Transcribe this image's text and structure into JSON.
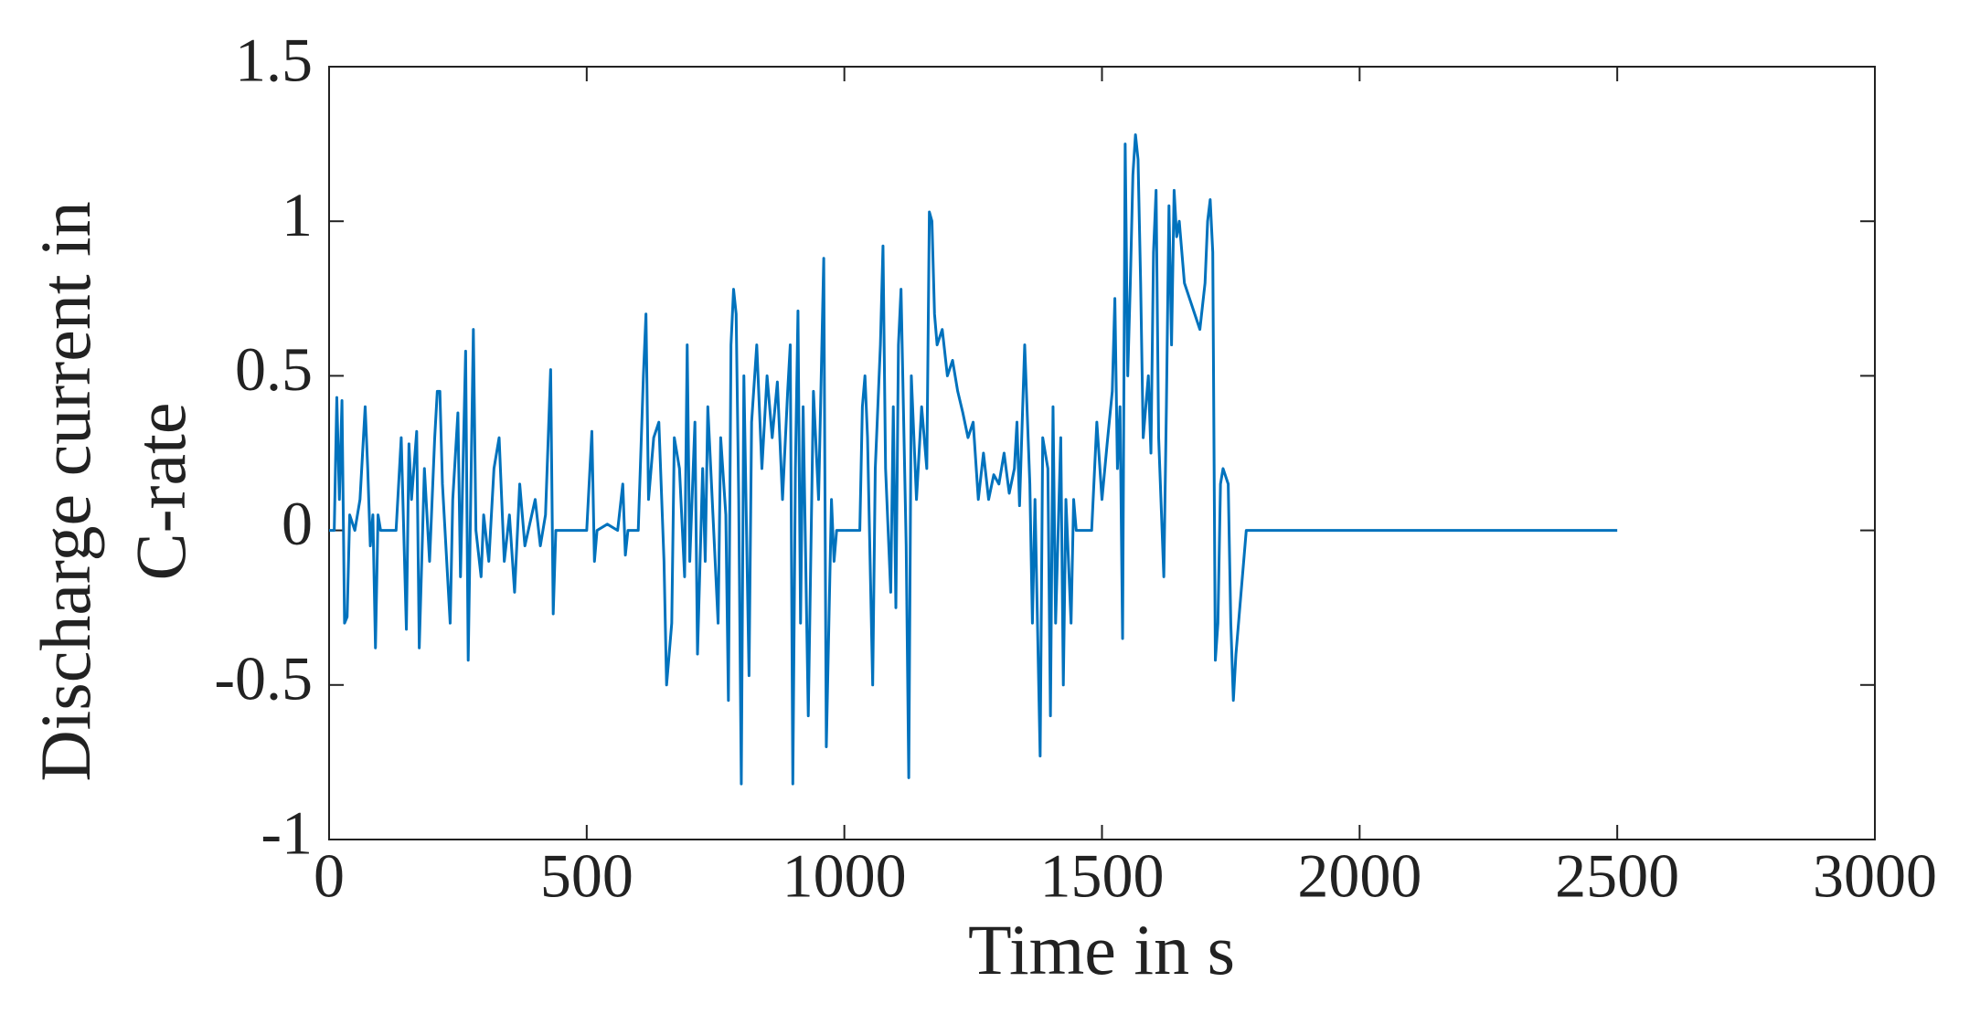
{
  "chart_data": {
    "type": "line",
    "xlabel": "Time in s",
    "ylabel": [
      "Discharge current in",
      "C-rate"
    ],
    "xlim": [
      0,
      3000
    ],
    "xticks": [
      0,
      500,
      1000,
      1500,
      2000,
      2500,
      3000
    ],
    "ylim": [
      -1,
      1.5
    ],
    "yticks": [
      -1,
      -0.5,
      0,
      0.5,
      1,
      1.5
    ],
    "series": [
      {
        "color": "#0072bd",
        "x": [
          0,
          10,
          15,
          20,
          25,
          30,
          35,
          40,
          50,
          60,
          70,
          75,
          80,
          85,
          90,
          95,
          100,
          130,
          140,
          150,
          155,
          160,
          170,
          175,
          185,
          195,
          200,
          205,
          210,
          215,
          220,
          230,
          235,
          240,
          250,
          255,
          265,
          270,
          280,
          285,
          295,
          300,
          310,
          320,
          330,
          340,
          350,
          360,
          370,
          380,
          400,
          410,
          420,
          430,
          435,
          440,
          500,
          510,
          515,
          520,
          540,
          560,
          570,
          575,
          580,
          600,
          610,
          615,
          620,
          630,
          640,
          650,
          655,
          665,
          670,
          680,
          690,
          695,
          700,
          710,
          715,
          725,
          730,
          735,
          745,
          755,
          760,
          770,
          775,
          780,
          785,
          790,
          795,
          800,
          805,
          815,
          820,
          830,
          840,
          850,
          860,
          870,
          880,
          890,
          895,
          900,
          905,
          910,
          915,
          920,
          930,
          940,
          950,
          960,
          965,
          970,
          975,
          980,
          985,
          1000,
          1030,
          1035,
          1040,
          1045,
          1055,
          1060,
          1070,
          1075,
          1080,
          1090,
          1095,
          1100,
          1105,
          1110,
          1120,
          1125,
          1130,
          1140,
          1150,
          1160,
          1165,
          1170,
          1175,
          1180,
          1190,
          1200,
          1210,
          1220,
          1230,
          1240,
          1250,
          1260,
          1270,
          1280,
          1290,
          1300,
          1310,
          1320,
          1330,
          1335,
          1340,
          1350,
          1360,
          1365,
          1370,
          1380,
          1385,
          1395,
          1400,
          1405,
          1410,
          1420,
          1425,
          1430,
          1440,
          1445,
          1450,
          1480,
          1490,
          1500,
          1510,
          1520,
          1525,
          1530,
          1535,
          1540,
          1545,
          1550,
          1555,
          1560,
          1565,
          1570,
          1575,
          1580,
          1590,
          1595,
          1600,
          1605,
          1610,
          1620,
          1625,
          1630,
          1635,
          1640,
          1645,
          1650,
          1660,
          1670,
          1680,
          1690,
          1700,
          1705,
          1710,
          1715,
          1720,
          1725,
          1730,
          1735,
          1745,
          1750,
          1755,
          1760,
          1770,
          1775,
          1780,
          2500
        ],
        "values": [
          0,
          0,
          0.43,
          0.1,
          0.42,
          -0.3,
          -0.28,
          0.05,
          0,
          0.1,
          0.4,
          0.2,
          -0.05,
          0.05,
          -0.38,
          0.05,
          0,
          0,
          0.3,
          -0.32,
          0.28,
          0.1,
          0.32,
          -0.38,
          0.2,
          -0.1,
          0.1,
          0.3,
          0.45,
          0.45,
          0.15,
          -0.15,
          -0.3,
          0.1,
          0.38,
          -0.15,
          0.58,
          -0.42,
          0.65,
          0,
          -0.15,
          0.05,
          -0.1,
          0.2,
          0.3,
          -0.1,
          0.05,
          -0.2,
          0.15,
          -0.05,
          0.1,
          -0.05,
          0.05,
          0.52,
          -0.27,
          0,
          0,
          0.32,
          -0.1,
          0,
          0.02,
          0,
          0.15,
          -0.08,
          0,
          0,
          0.5,
          0.7,
          0.1,
          0.3,
          0.35,
          -0.1,
          -0.5,
          -0.3,
          0.3,
          0.2,
          -0.15,
          0.6,
          -0.1,
          0.35,
          -0.4,
          0.2,
          -0.1,
          0.4,
          0.05,
          -0.3,
          0.3,
          0.05,
          -0.55,
          0.6,
          0.78,
          0.7,
          0.1,
          -0.82,
          0.5,
          -0.47,
          0.35,
          0.6,
          0.2,
          0.5,
          0.3,
          0.48,
          0.1,
          0.45,
          0.6,
          -0.82,
          0.2,
          0.71,
          -0.3,
          0.4,
          -0.6,
          0.45,
          0.1,
          0.88,
          -0.7,
          -0.3,
          0.1,
          -0.1,
          0,
          0,
          0,
          0.4,
          0.5,
          0.3,
          -0.5,
          0.2,
          0.6,
          0.92,
          0.2,
          -0.2,
          0.4,
          -0.25,
          0.6,
          0.78,
          -0.05,
          -0.8,
          0.5,
          0.1,
          0.4,
          0.2,
          1.03,
          1,
          0.7,
          0.6,
          0.65,
          0.5,
          0.55,
          0.45,
          0.38,
          0.3,
          0.35,
          0.1,
          0.25,
          0.1,
          0.18,
          0.15,
          0.25,
          0.12,
          0.2,
          0.35,
          0.08,
          0.6,
          0.15,
          -0.3,
          0.1,
          -0.73,
          0.3,
          0.2,
          -0.6,
          0.4,
          -0.3,
          0.3,
          -0.5,
          0.1,
          -0.3,
          0.1,
          0,
          0,
          0.35,
          0.1,
          0.28,
          0.45,
          0.75,
          0.2,
          0.4,
          -0.35,
          1.25,
          0.5,
          0.8,
          1.15,
          1.28,
          1.2,
          0.8,
          0.3,
          0.5,
          0.25,
          0.9,
          1.1,
          0.3,
          -0.15,
          0.4,
          1.05,
          0.6,
          1.1,
          0.95,
          1,
          0.8,
          0.75,
          0.7,
          0.65,
          0.8,
          1,
          1.07,
          0.9,
          -0.42,
          -0.3,
          0.15,
          0.2,
          0.15,
          -0.3,
          -0.55,
          -0.4,
          -0.2,
          -0.1,
          0,
          0
        ]
      }
    ]
  }
}
